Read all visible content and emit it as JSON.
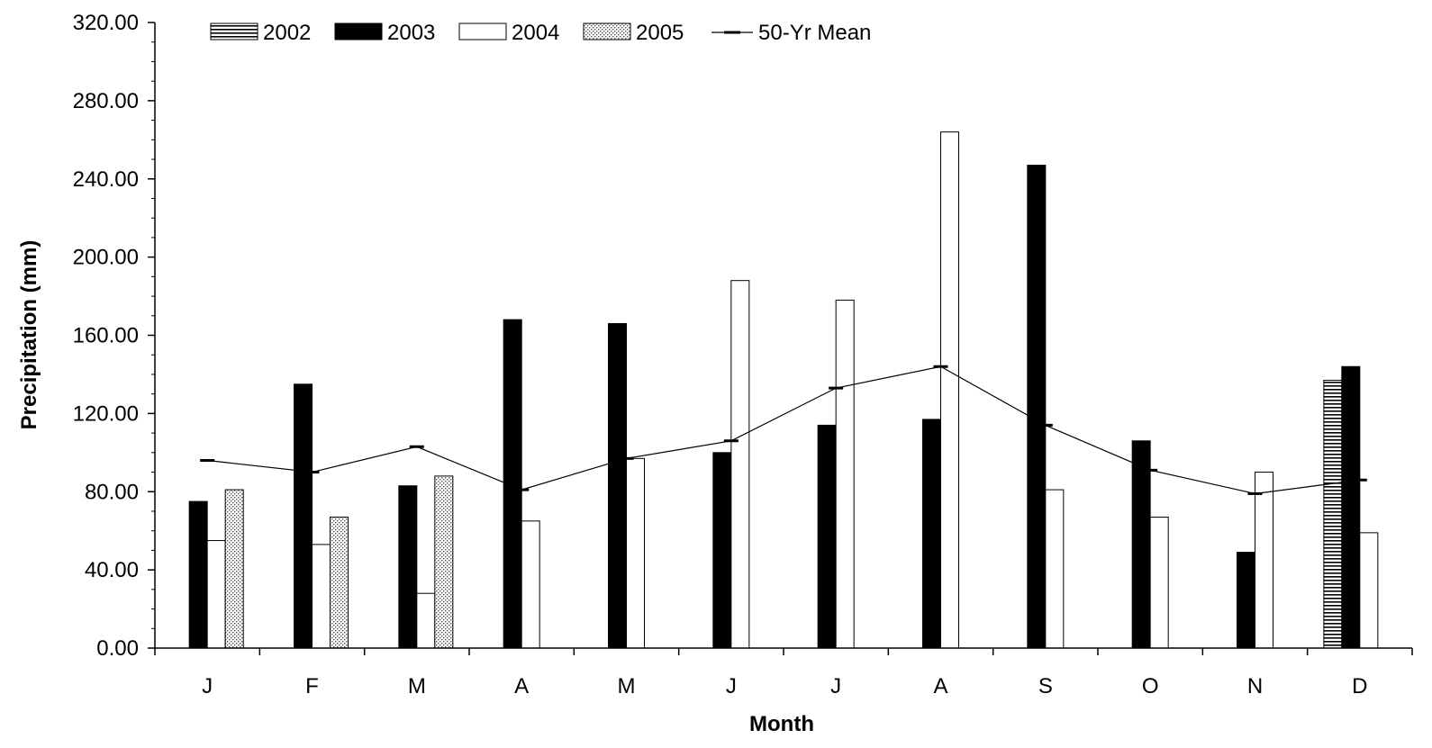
{
  "chart_data": {
    "type": "bar",
    "title": "",
    "xlabel": "Month",
    "ylabel": "Precipitation (mm)",
    "ylim": [
      0,
      320
    ],
    "y_ticks": [
      "0.00",
      "40.00",
      "80.00",
      "120.00",
      "160.00",
      "200.00",
      "240.00",
      "280.00",
      "320.00"
    ],
    "categories": [
      "J",
      "F",
      "M",
      "A",
      "M",
      "J",
      "J",
      "A",
      "S",
      "O",
      "N",
      "D"
    ],
    "legend_position": "top-left",
    "grid": false,
    "series": [
      {
        "name": "2002",
        "pattern": "horizontal-stripes",
        "color": "#000000",
        "values": [
          null,
          null,
          null,
          null,
          null,
          null,
          null,
          null,
          null,
          null,
          null,
          137
        ]
      },
      {
        "name": "2003",
        "pattern": "solid",
        "color": "#000000",
        "values": [
          75,
          135,
          83,
          168,
          166,
          100,
          114,
          117,
          247,
          106,
          49,
          144
        ]
      },
      {
        "name": "2004",
        "pattern": "hollow",
        "color": "#ffffff",
        "values": [
          55,
          53,
          28,
          65,
          97,
          188,
          178,
          264,
          81,
          67,
          90,
          59
        ]
      },
      {
        "name": "2005",
        "pattern": "dotted",
        "color": "#dddddd",
        "values": [
          81,
          67,
          88,
          null,
          null,
          null,
          null,
          null,
          null,
          null,
          null,
          null
        ]
      }
    ],
    "mean_line": {
      "name": "50-Yr Mean",
      "values": [
        96,
        90,
        103,
        81,
        97,
        106,
        133,
        144,
        114,
        91,
        79,
        86
      ]
    }
  }
}
